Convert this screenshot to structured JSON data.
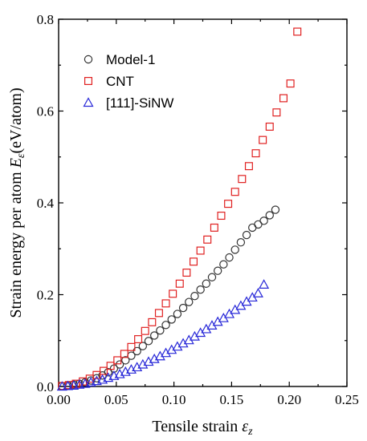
{
  "chart_data": {
    "type": "scatter",
    "xlabel": "Tensile strain",
    "xlabel_symbol": "ε",
    "xlabel_sub": "z",
    "ylabel": "Strain energy per atom",
    "ylabel_symbol": "E",
    "ylabel_sub": "ε",
    "ylabel_unit": "(eV/atom)",
    "xlim": [
      0.0,
      0.25
    ],
    "ylim": [
      0.0,
      0.8
    ],
    "xticks": [
      "0.00",
      "0.05",
      "0.10",
      "0.15",
      "0.20",
      "0.25"
    ],
    "yticks": [
      "0.0",
      "0.2",
      "0.4",
      "0.6",
      "0.8"
    ],
    "grid": false,
    "legend_position": "top-left",
    "series": [
      {
        "name": "Model-1",
        "marker": "circle",
        "color": "#333333",
        "x": [
          0.003,
          0.008,
          0.013,
          0.018,
          0.023,
          0.028,
          0.033,
          0.038,
          0.043,
          0.048,
          0.053,
          0.058,
          0.063,
          0.068,
          0.073,
          0.078,
          0.083,
          0.088,
          0.093,
          0.098,
          0.103,
          0.108,
          0.113,
          0.118,
          0.123,
          0.128,
          0.133,
          0.138,
          0.143,
          0.148,
          0.153,
          0.158,
          0.163,
          0.168,
          0.173,
          0.178,
          0.183,
          0.188
        ],
        "y": [
          0.001,
          0.002,
          0.004,
          0.006,
          0.009,
          0.013,
          0.018,
          0.024,
          0.031,
          0.039,
          0.048,
          0.057,
          0.067,
          0.077,
          0.088,
          0.099,
          0.111,
          0.122,
          0.134,
          0.146,
          0.158,
          0.171,
          0.184,
          0.197,
          0.211,
          0.224,
          0.238,
          0.252,
          0.266,
          0.281,
          0.298,
          0.314,
          0.33,
          0.346,
          0.353,
          0.361,
          0.373,
          0.385
        ]
      },
      {
        "name": "CNT",
        "marker": "square",
        "color": "#e02020",
        "x": [
          0.003,
          0.009,
          0.015,
          0.021,
          0.027,
          0.033,
          0.039,
          0.045,
          0.051,
          0.057,
          0.063,
          0.069,
          0.075,
          0.081,
          0.087,
          0.093,
          0.099,
          0.105,
          0.111,
          0.117,
          0.123,
          0.129,
          0.135,
          0.141,
          0.147,
          0.153,
          0.159,
          0.165,
          0.171,
          0.177,
          0.183,
          0.189,
          0.195,
          0.201,
          0.207
        ],
        "y": [
          0.001,
          0.003,
          0.006,
          0.011,
          0.017,
          0.025,
          0.034,
          0.045,
          0.057,
          0.071,
          0.086,
          0.103,
          0.121,
          0.14,
          0.16,
          0.181,
          0.202,
          0.224,
          0.248,
          0.272,
          0.296,
          0.32,
          0.346,
          0.372,
          0.398,
          0.424,
          0.452,
          0.48,
          0.508,
          0.537,
          0.566,
          0.597,
          0.628,
          0.66,
          0.773
        ]
      },
      {
        "name": "[111]-SiNW",
        "marker": "triangle",
        "color": "#2828d8",
        "x": [
          0.003,
          0.008,
          0.013,
          0.018,
          0.023,
          0.028,
          0.033,
          0.038,
          0.043,
          0.048,
          0.053,
          0.058,
          0.063,
          0.068,
          0.073,
          0.078,
          0.083,
          0.088,
          0.093,
          0.098,
          0.103,
          0.108,
          0.113,
          0.118,
          0.123,
          0.128,
          0.133,
          0.138,
          0.143,
          0.148,
          0.153,
          0.158,
          0.163,
          0.168,
          0.173,
          0.178
        ],
        "y": [
          0.0,
          0.001,
          0.002,
          0.004,
          0.006,
          0.009,
          0.012,
          0.015,
          0.019,
          0.023,
          0.027,
          0.032,
          0.037,
          0.042,
          0.048,
          0.054,
          0.06,
          0.066,
          0.073,
          0.08,
          0.087,
          0.094,
          0.101,
          0.109,
          0.117,
          0.125,
          0.133,
          0.141,
          0.149,
          0.158,
          0.167,
          0.176,
          0.185,
          0.194,
          0.203,
          0.222
        ]
      }
    ]
  }
}
